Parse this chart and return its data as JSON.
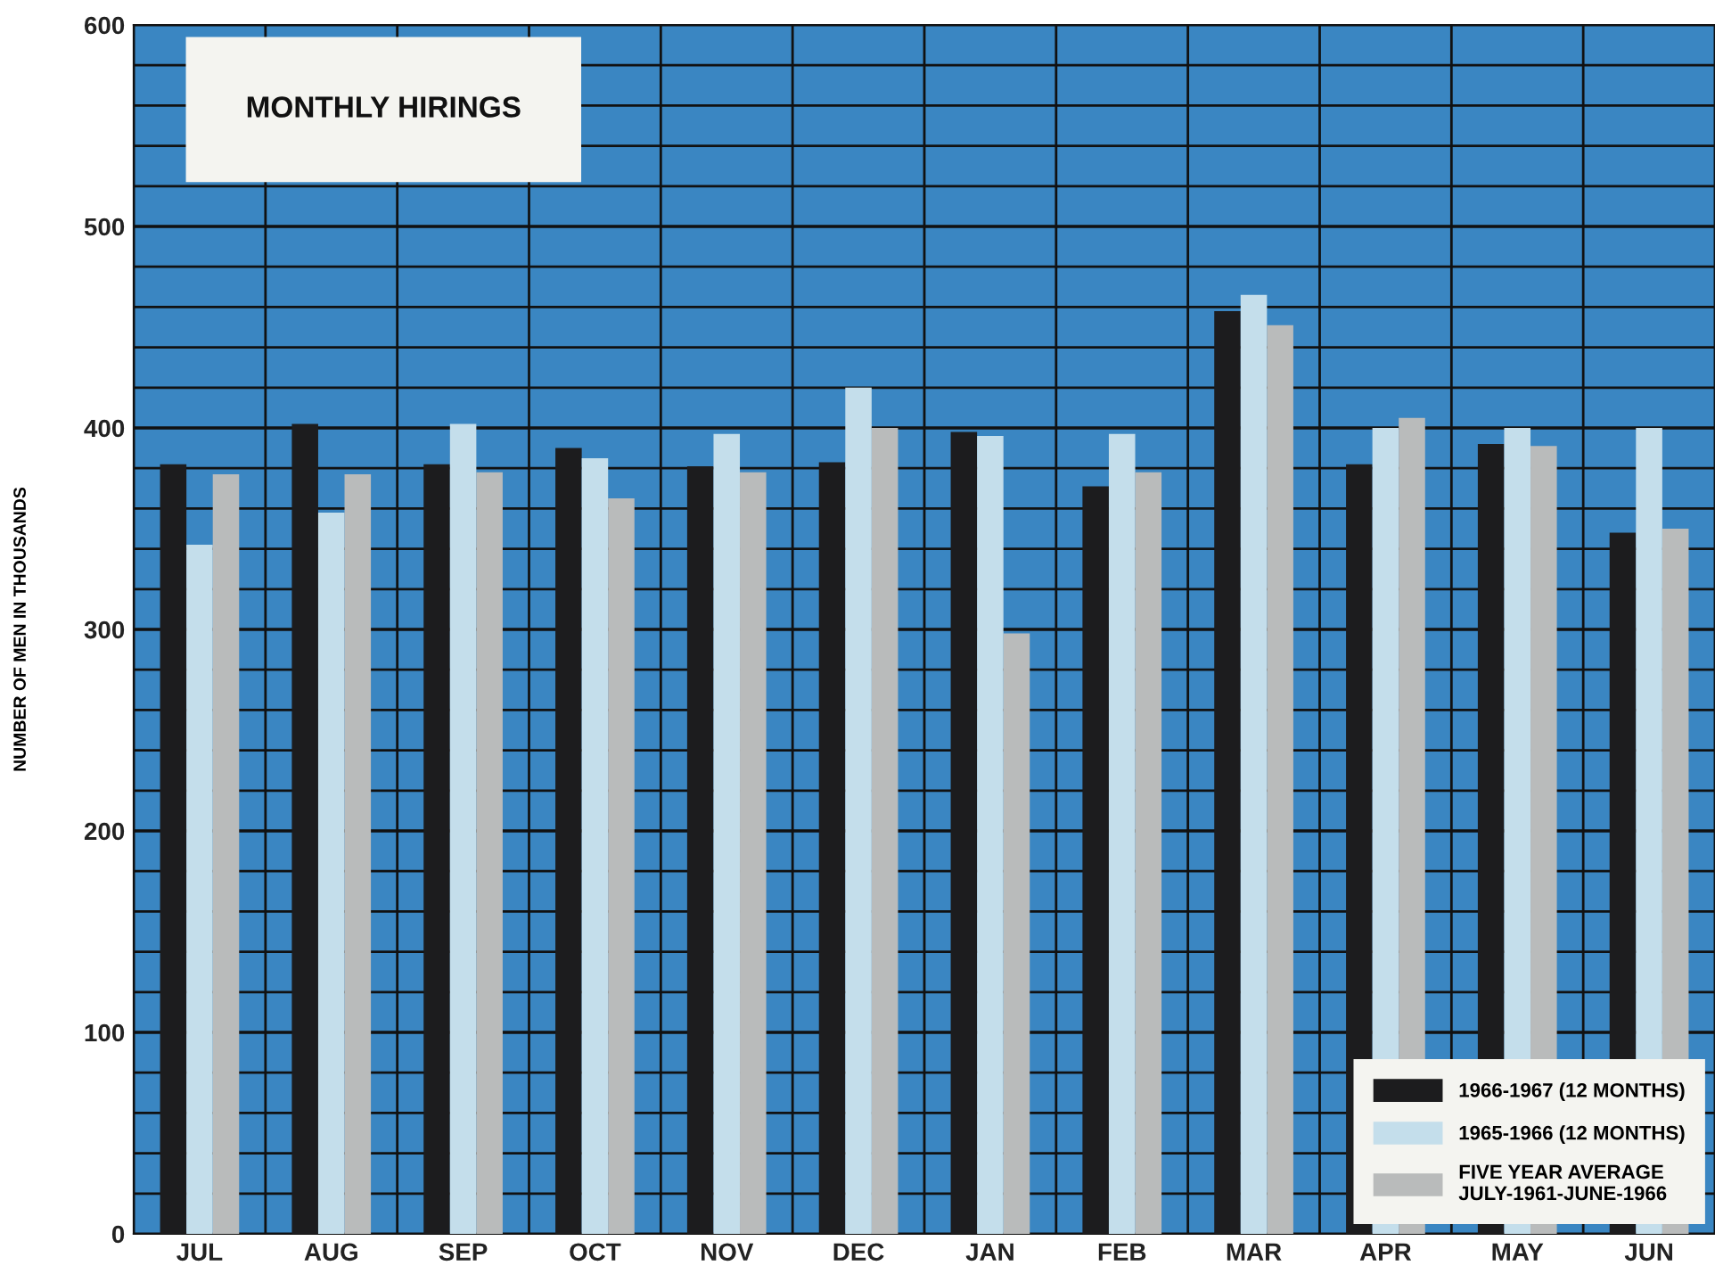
{
  "chart_data": {
    "type": "bar",
    "title": "MONTHLY HIRINGS",
    "ylabel": "NUMBER OF MEN IN THOUSANDS",
    "categories": [
      "JUL",
      "AUG",
      "SEP",
      "OCT",
      "NOV",
      "DEC",
      "JAN",
      "FEB",
      "MAR",
      "APR",
      "MAY",
      "JUN"
    ],
    "series": [
      {
        "name": "1966-1967 (12 MONTHS)",
        "color": "#1c1c1e",
        "values": [
          382,
          402,
          382,
          390,
          381,
          383,
          398,
          371,
          458,
          382,
          392,
          348
        ]
      },
      {
        "name": "1965-1966 (12 MONTHS)",
        "color": "#c4deeb",
        "values": [
          342,
          358,
          402,
          385,
          397,
          420,
          396,
          397,
          466,
          400,
          400,
          400
        ]
      },
      {
        "name": "FIVE YEAR AVERAGE\nJULY-1961-JUNE-1966",
        "color": "#b9bbbb",
        "values": [
          377,
          377,
          378,
          365,
          378,
          400,
          298,
          378,
          451,
          405,
          391,
          350
        ]
      }
    ],
    "ylim": [
      0,
      600
    ],
    "yticks": [
      0,
      100,
      200,
      300,
      400,
      500,
      600
    ],
    "grid": true,
    "legend": "bottom right"
  }
}
